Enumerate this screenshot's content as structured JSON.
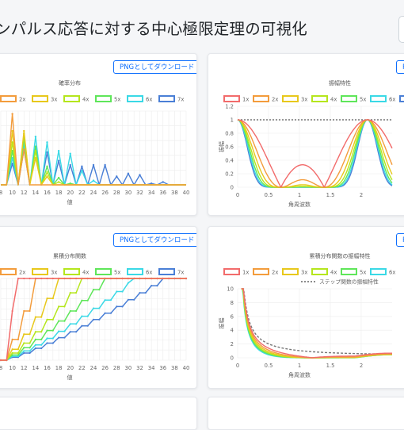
{
  "page": {
    "title": "ンパルス応答に対する中心極限定理の可視化"
  },
  "download_label": "PNGとしてダウンロード",
  "colors": [
    "#f26b6b",
    "#f39c3c",
    "#e8c81c",
    "#b5e61d",
    "#5fe65a",
    "#3ad9e6",
    "#4a7fd6"
  ],
  "legend_labels": [
    "1x",
    "2x",
    "3x",
    "4x",
    "5x",
    "6x",
    "7x"
  ],
  "chart_data": [
    {
      "id": "prob",
      "type": "line",
      "title": "確率分布",
      "xlabel": "値",
      "ylabel": "",
      "x_ticks": [
        "8",
        "10",
        "12",
        "14",
        "16",
        "18",
        "20",
        "22",
        "24",
        "26",
        "28",
        "30",
        "32",
        "34",
        "36",
        "38",
        "40"
      ],
      "series": [
        {
          "name": "2x",
          "values": [
            {
              "x": 10,
              "y": 0.5
            },
            {
              "x": 12,
              "y": 0.25
            }
          ]
        },
        {
          "name": "3x",
          "values": [
            {
              "x": 10,
              "y": 0.38
            },
            {
              "x": 12,
              "y": 0.38
            },
            {
              "x": 14,
              "y": 0.19
            },
            {
              "x": 16,
              "y": 0.06
            }
          ]
        },
        {
          "name": "4x",
          "values": [
            {
              "x": 10,
              "y": 0.3
            },
            {
              "x": 12,
              "y": 0.36
            },
            {
              "x": 14,
              "y": 0.24
            },
            {
              "x": 16,
              "y": 0.09
            },
            {
              "x": 18,
              "y": 0.02
            }
          ]
        },
        {
          "name": "5x",
          "values": [
            {
              "x": 10,
              "y": 0.24
            },
            {
              "x": 12,
              "y": 0.33
            },
            {
              "x": 14,
              "y": 0.27
            },
            {
              "x": 16,
              "y": 0.13
            },
            {
              "x": 18,
              "y": 0.05
            },
            {
              "x": 20,
              "y": 0.01
            }
          ]
        },
        {
          "name": "6x",
          "values": [
            {
              "x": 10,
              "y": 0.19
            },
            {
              "x": 12,
              "y": 0.29
            },
            {
              "x": 14,
              "y": 0.34
            },
            {
              "x": 16,
              "y": 0.3
            },
            {
              "x": 18,
              "y": 0.24
            },
            {
              "x": 20,
              "y": 0.22
            },
            {
              "x": 22,
              "y": 0.1
            },
            {
              "x": 24,
              "y": 0.03
            }
          ]
        },
        {
          "name": "7x",
          "values": [
            {
              "x": 10,
              "y": 0.15
            },
            {
              "x": 12,
              "y": 0.25
            },
            {
              "x": 14,
              "y": 0.27
            },
            {
              "x": 16,
              "y": 0.23
            },
            {
              "x": 18,
              "y": 0.17
            },
            {
              "x": 20,
              "y": 0.14
            },
            {
              "x": 22,
              "y": 0.13
            },
            {
              "x": 24,
              "y": 0.14
            },
            {
              "x": 26,
              "y": 0.14
            },
            {
              "x": 28,
              "y": 0.06
            },
            {
              "x": 30,
              "y": 0.08
            },
            {
              "x": 32,
              "y": 0.07
            },
            {
              "x": 34,
              "y": 0.01
            },
            {
              "x": 36,
              "y": 0.02
            }
          ]
        }
      ]
    },
    {
      "id": "amp",
      "type": "line",
      "title": "振幅特性",
      "xlabel": "角周波数",
      "ylabel": "振幅",
      "ylim": [
        0,
        1.2
      ],
      "xlim": [
        0,
        2.5
      ],
      "y_ticks": [
        "0",
        "0.2",
        "0.4",
        "0.6",
        "0.8",
        "1",
        "1.2"
      ],
      "x_ticks": [
        "0",
        "0.5",
        "1",
        "1.5",
        "2"
      ]
    },
    {
      "id": "cdf",
      "type": "line",
      "title": "累積分布関数",
      "xlabel": "値",
      "ylabel": "",
      "x_ticks": [
        "8",
        "10",
        "12",
        "14",
        "16",
        "18",
        "20",
        "22",
        "24",
        "26",
        "28",
        "30",
        "32",
        "34",
        "36",
        "38",
        "40"
      ]
    },
    {
      "id": "cdfamp",
      "type": "line",
      "title": "累積分布関数の振幅特性",
      "xlabel": "角周波数",
      "ylabel": "振幅",
      "ylim": [
        0,
        10
      ],
      "xlim": [
        0,
        2.5
      ],
      "y_ticks": [
        "0",
        "2",
        "4",
        "6",
        "8",
        "10"
      ],
      "x_ticks": [
        "0",
        "0.5",
        "1",
        "1.5",
        "2"
      ],
      "step_label": "ステップ関数の振幅特性"
    }
  ]
}
